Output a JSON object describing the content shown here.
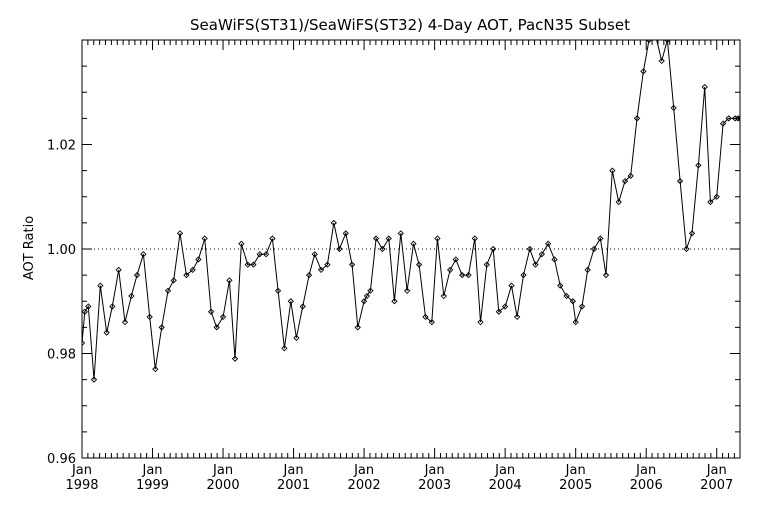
{
  "chart_data": {
    "type": "line",
    "title": "SeaWiFS(ST31)/SeaWiFS(ST32) 4-Day AOT, PacN35 Subset",
    "xlabel": "",
    "ylabel": "AOT Ratio",
    "x_range": [
      1998.0,
      2007.33
    ],
    "ylim": [
      0.96,
      1.04
    ],
    "y_ticks": [
      {
        "value": 0.96,
        "label": "0.96"
      },
      {
        "value": 0.98,
        "label": "0.98"
      },
      {
        "value": 1.0,
        "label": "1.00"
      },
      {
        "value": 1.02,
        "label": "1.02"
      }
    ],
    "x_ticks": [
      {
        "value": 1998.0,
        "month": "Jan",
        "year": "1998"
      },
      {
        "value": 1999.0,
        "month": "Jan",
        "year": "1999"
      },
      {
        "value": 2000.0,
        "month": "Jan",
        "year": "2000"
      },
      {
        "value": 2001.0,
        "month": "Jan",
        "year": "2001"
      },
      {
        "value": 2002.0,
        "month": "Jan",
        "year": "2002"
      },
      {
        "value": 2003.0,
        "month": "Jan",
        "year": "2003"
      },
      {
        "value": 2004.0,
        "month": "Jan",
        "year": "2004"
      },
      {
        "value": 2005.0,
        "month": "Jan",
        "year": "2005"
      },
      {
        "value": 2006.0,
        "month": "Jan",
        "year": "2006"
      },
      {
        "value": 2007.0,
        "month": "Jan",
        "year": "2007"
      }
    ],
    "reference_line": {
      "y": 1.0,
      "style": "dotted"
    },
    "grid": false,
    "series": [
      {
        "x": [
          1998.0,
          1998.04,
          1998.09,
          1998.17,
          1998.26,
          1998.35,
          1998.43,
          1998.52,
          1998.61,
          1998.7,
          1998.78,
          1998.87,
          1998.96,
          1999.04,
          1999.13,
          1999.22,
          1999.3,
          1999.39,
          1999.48,
          1999.57,
          1999.65,
          1999.74,
          1999.83,
          1999.91,
          2000.0,
          2000.09,
          2000.17,
          2000.26,
          2000.35,
          2000.43,
          2000.52,
          2000.61,
          2000.7,
          2000.78,
          2000.87,
          2000.96,
          2001.04,
          2001.13,
          2001.22,
          2001.3,
          2001.39,
          2001.48,
          2001.57,
          2001.65,
          2001.74,
          2001.83,
          2001.91,
          2002.0,
          2002.04,
          2002.09,
          2002.17,
          2002.26,
          2002.35,
          2002.43,
          2002.52,
          2002.61,
          2002.7,
          2002.78,
          2002.87,
          2002.96,
          2003.04,
          2003.13,
          2003.22,
          2003.3,
          2003.39,
          2003.48,
          2003.57,
          2003.65,
          2003.74,
          2003.83,
          2003.91,
          2004.0,
          2004.09,
          2004.17,
          2004.26,
          2004.35,
          2004.43,
          2004.52,
          2004.61,
          2004.7,
          2004.78,
          2004.87,
          2004.96,
          2005.0,
          2005.09,
          2005.17,
          2005.26,
          2005.35,
          2005.43,
          2005.52,
          2005.61,
          2005.7,
          2005.78,
          2005.87,
          2005.96,
          2006.04,
          2006.13,
          2006.22,
          2006.3,
          2006.39,
          2006.48,
          2006.57,
          2006.65,
          2006.74,
          2006.83,
          2006.91,
          2007.0,
          2007.09,
          2007.17,
          2007.26,
          2007.3,
          2007.33
        ],
        "values": [
          0.982,
          0.988,
          0.989,
          0.975,
          0.993,
          0.984,
          0.989,
          0.996,
          0.986,
          0.991,
          0.995,
          0.999,
          0.987,
          0.977,
          0.985,
          0.992,
          0.994,
          1.003,
          0.995,
          0.996,
          0.998,
          1.002,
          0.988,
          0.985,
          0.987,
          0.994,
          0.979,
          1.001,
          0.997,
          0.997,
          0.999,
          0.999,
          1.002,
          0.992,
          0.981,
          0.99,
          0.983,
          0.989,
          0.995,
          0.999,
          0.996,
          0.997,
          1.005,
          1.0,
          1.003,
          0.997,
          0.985,
          0.99,
          0.991,
          0.992,
          1.002,
          1.0,
          1.002,
          0.99,
          1.003,
          0.992,
          1.001,
          0.997,
          0.987,
          0.986,
          1.002,
          0.991,
          0.996,
          0.998,
          0.995,
          0.995,
          1.002,
          0.986,
          0.997,
          1.0,
          0.988,
          0.989,
          0.993,
          0.987,
          0.995,
          1.0,
          0.997,
          0.999,
          1.001,
          0.998,
          0.993,
          0.991,
          0.99,
          0.986,
          0.989,
          0.996,
          1.0,
          1.002,
          0.995,
          1.015,
          1.009,
          1.013,
          1.014,
          1.025,
          1.034,
          1.04,
          1.041,
          1.036,
          1.04,
          1.027,
          1.013,
          1.0,
          1.003,
          1.016,
          1.031,
          1.009,
          1.01,
          1.024,
          1.025,
          1.025,
          1.025,
          1.025
        ]
      }
    ]
  }
}
